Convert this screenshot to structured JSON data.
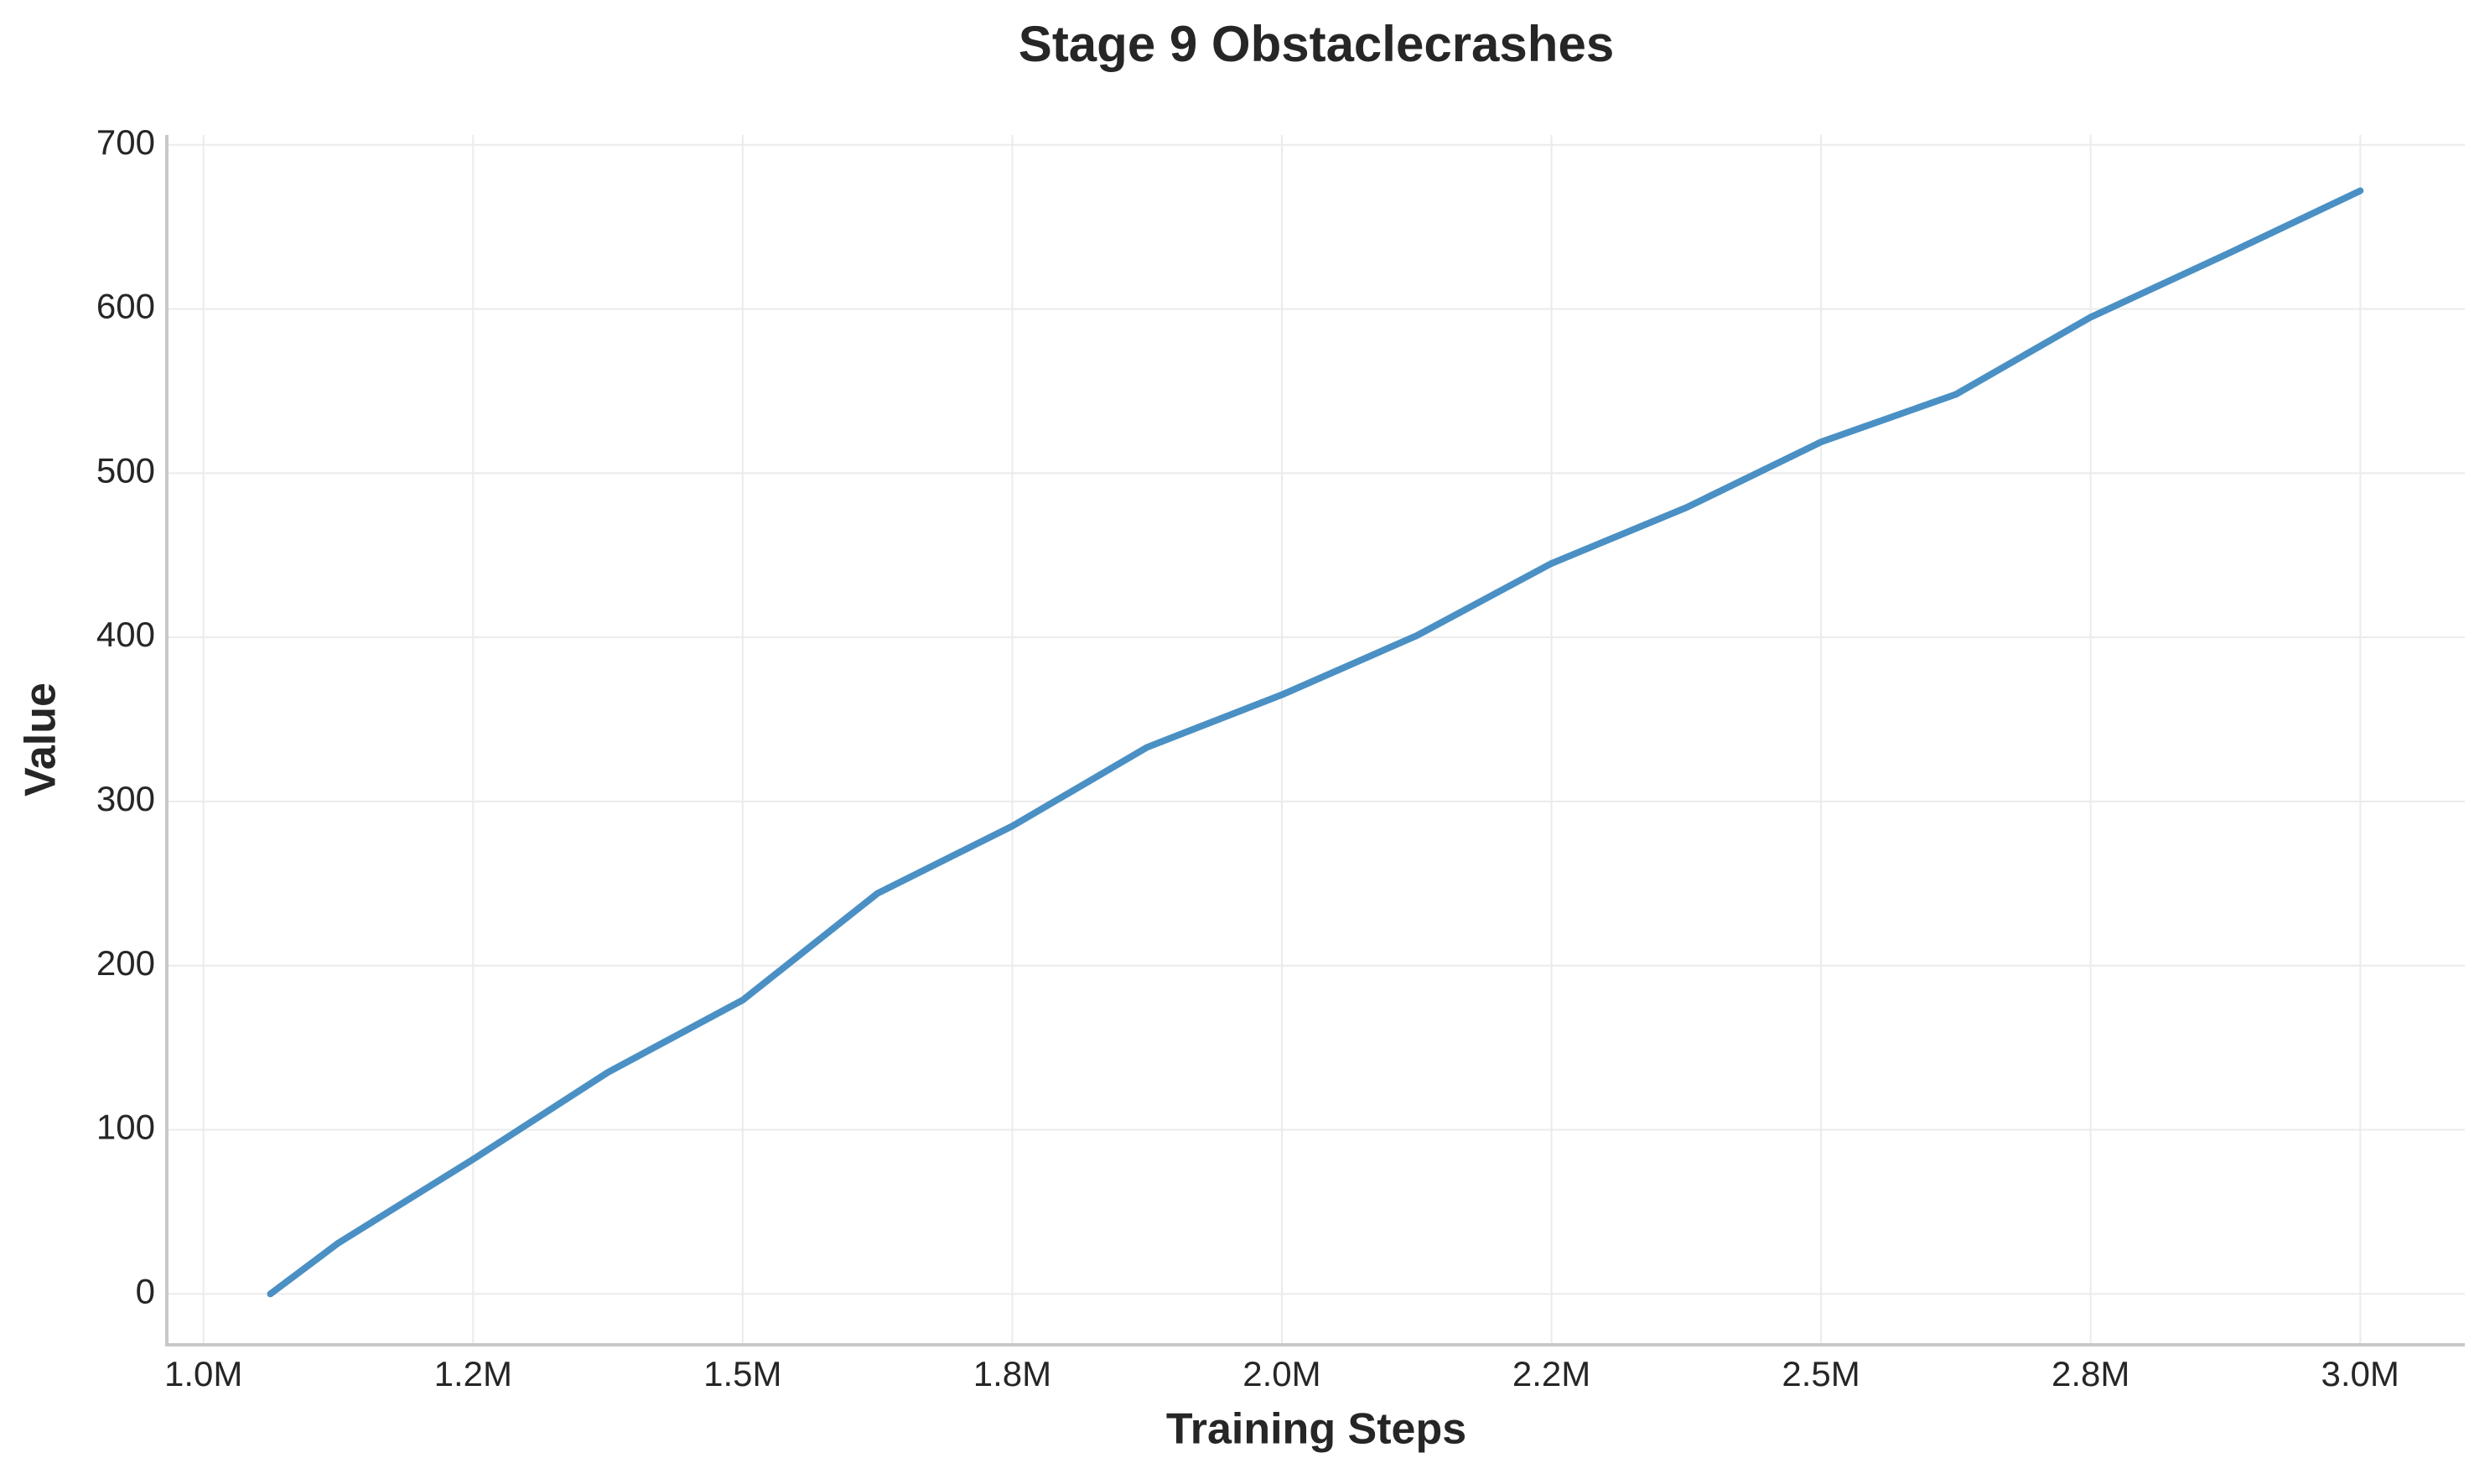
{
  "chart_data": {
    "type": "line",
    "title": "Stage 9 Obstaclecrashes",
    "xlabel": "Training Steps",
    "ylabel": "Value",
    "x": [
      1062000,
      1125000,
      1250000,
      1375000,
      1500000,
      1625000,
      1750000,
      1875000,
      2000000,
      2125000,
      2250000,
      2375000,
      2500000,
      2625000,
      2750000,
      2875000,
      3000000
    ],
    "series": [
      {
        "name": "Obstaclecrashes",
        "color": "#4a90c4",
        "values": [
          0,
          31,
          82,
          135,
          179,
          244,
          285,
          333,
          365,
          401,
          445,
          479,
          519,
          548,
          595,
          633,
          672
        ]
      }
    ],
    "xlim": [
      966000,
      3097000
    ],
    "xticks": [
      {
        "value": 1000000,
        "label": "1.0M"
      },
      {
        "value": 1250000,
        "label": "1.2M"
      },
      {
        "value": 1500000,
        "label": "1.5M"
      },
      {
        "value": 1750000,
        "label": "1.8M"
      },
      {
        "value": 2000000,
        "label": "2.0M"
      },
      {
        "value": 2250000,
        "label": "2.2M"
      },
      {
        "value": 2500000,
        "label": "2.5M"
      },
      {
        "value": 2750000,
        "label": "2.8M"
      },
      {
        "value": 3000000,
        "label": "3.0M"
      }
    ],
    "ylim": [
      -31,
      706
    ],
    "yticks": [
      0,
      100,
      200,
      300,
      400,
      500,
      600,
      700
    ],
    "grid": true
  }
}
